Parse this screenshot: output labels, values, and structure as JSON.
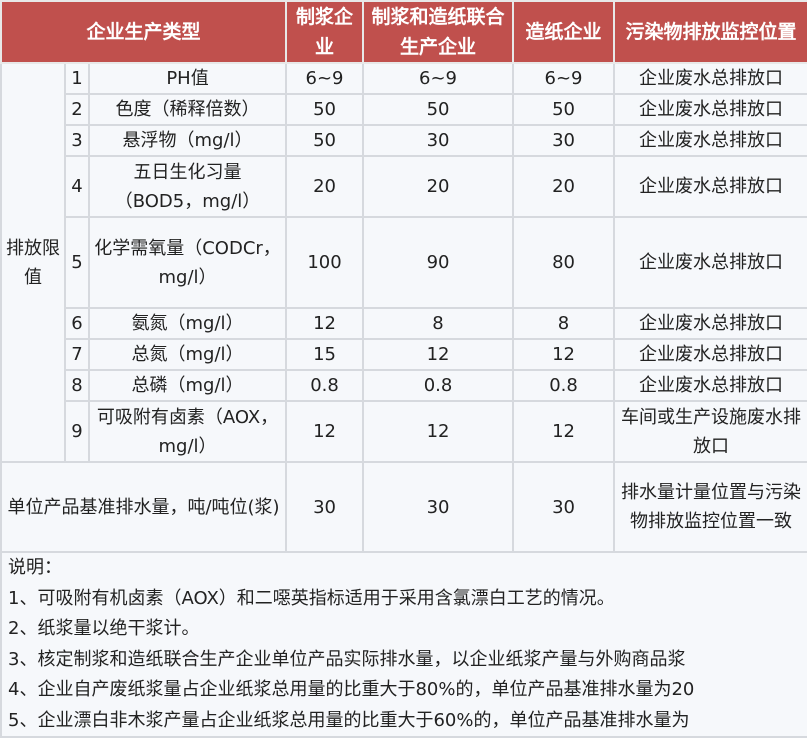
{
  "header": {
    "type": "企业生产类型",
    "pulp": "制浆企业",
    "integrated": "制浆和造纸联合生产企业",
    "paper": "造纸企业",
    "monitor": "污染物排放监控位置"
  },
  "group_label": "排放限值",
  "rows": [
    {
      "no": "1",
      "item": "PH值",
      "pulp": "6~9",
      "integrated": "6~9",
      "paper": "6~9",
      "monitor": "企业废水总排放口"
    },
    {
      "no": "2",
      "item": "色度（稀释倍数）",
      "pulp": "50",
      "integrated": "50",
      "paper": "50",
      "monitor": "企业废水总排放口"
    },
    {
      "no": "3",
      "item": "悬浮物（mg/l）",
      "pulp": "50",
      "integrated": "30",
      "paper": "30",
      "monitor": "企业废水总排放口"
    },
    {
      "no": "4",
      "item": "五日生化习量（BOD5，mg/l）",
      "pulp": "20",
      "integrated": "20",
      "paper": "20",
      "monitor": "企业废水总排放口"
    },
    {
      "no": "5",
      "item": "化学需氧量（CODCr，mg/l）",
      "pulp": "100",
      "integrated": "90",
      "paper": "80",
      "monitor": "企业废水总排放口"
    },
    {
      "no": "6",
      "item": "氨氮（mg/l）",
      "pulp": "12",
      "integrated": "8",
      "paper": "8",
      "monitor": "企业废水总排放口"
    },
    {
      "no": "7",
      "item": "总氮（mg/l）",
      "pulp": "15",
      "integrated": "12",
      "paper": "12",
      "monitor": "企业废水总排放口"
    },
    {
      "no": "8",
      "item": "总磷（mg/l）",
      "pulp": "0.8",
      "integrated": "0.8",
      "paper": "0.8",
      "monitor": "企业废水总排放口"
    },
    {
      "no": "9",
      "item": "可吸附有卤素（AOX，mg/l）",
      "pulp": "12",
      "integrated": "12",
      "paper": "12",
      "monitor": "车间或生产设施废水排放口"
    }
  ],
  "unit_row": {
    "item": "单位产品基准排水量，吨/吨位(浆)",
    "pulp": "30",
    "integrated": "30",
    "paper": "30",
    "monitor": "排水量计量位置与污染物排放监控位置一致"
  },
  "notes": [
    "说明：",
    "1、可吸附有机卤素（AOX）和二噁英指标适用于采用含氯漂白工艺的情况。",
    "2、纸浆量以绝干浆计。",
    "3、核定制浆和造纸联合生产企业单位产品实际排水量，以企业纸浆产量与外购商品浆",
    "4、企业自产废纸浆量占企业纸浆总用量的比重大于80%的，单位产品基准排水量为20",
    "5、企业漂白非木浆产量占企业纸浆总用量的比重大于60%的，单位产品基准排水量为"
  ]
}
